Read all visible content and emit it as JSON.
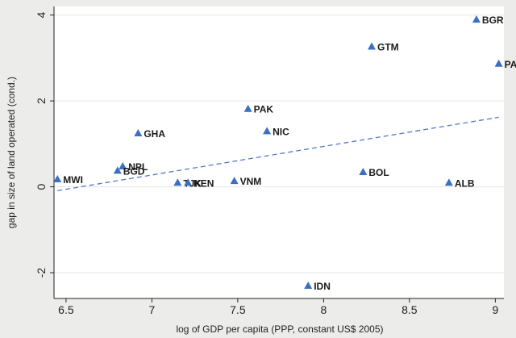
{
  "chart_data": {
    "type": "scatter",
    "title": "",
    "xlabel": "log of GDP per capita (PPP, constant US$ 2005)",
    "ylabel": "gap in size of land operated (cond.)",
    "xlim": [
      6.43,
      9.05
    ],
    "ylim": [
      -2.6,
      4.2
    ],
    "xticks": [
      6.5,
      7,
      7.5,
      8,
      8.5,
      9
    ],
    "xtick_labels": [
      "6.5",
      "7",
      "7.5",
      "8",
      "8.5",
      "9"
    ],
    "yticks": [
      -2,
      0,
      2,
      4
    ],
    "ytick_labels": [
      "-2",
      "0",
      "2",
      "4"
    ],
    "grid": "horizontal",
    "marker_color": "#3a6fc4",
    "fit_line_color": "#5578c8",
    "points": [
      {
        "label": "MWI",
        "x": 6.45,
        "y": 0.18
      },
      {
        "label": "NPL",
        "x": 6.83,
        "y": 0.48
      },
      {
        "label": "BGD",
        "x": 6.8,
        "y": 0.38
      },
      {
        "label": "GHA",
        "x": 6.92,
        "y": 1.25
      },
      {
        "label": "TJK",
        "x": 7.15,
        "y": 0.1
      },
      {
        "label": "KEN",
        "x": 7.21,
        "y": 0.1
      },
      {
        "label": "VNM",
        "x": 7.48,
        "y": 0.14
      },
      {
        "label": "PAK",
        "x": 7.56,
        "y": 1.82
      },
      {
        "label": "NIC",
        "x": 7.67,
        "y": 1.3
      },
      {
        "label": "IDN",
        "x": 7.91,
        "y": -2.3
      },
      {
        "label": "BOL",
        "x": 8.23,
        "y": 0.35
      },
      {
        "label": "GTM",
        "x": 8.28,
        "y": 3.27
      },
      {
        "label": "ALB",
        "x": 8.73,
        "y": 0.1
      },
      {
        "label": "BGR",
        "x": 8.89,
        "y": 3.9
      },
      {
        "label": "PAN",
        "x": 9.02,
        "y": 2.87
      }
    ],
    "fit_line": {
      "x": [
        6.45,
        9.02
      ],
      "y": [
        -0.09,
        1.62
      ]
    }
  }
}
